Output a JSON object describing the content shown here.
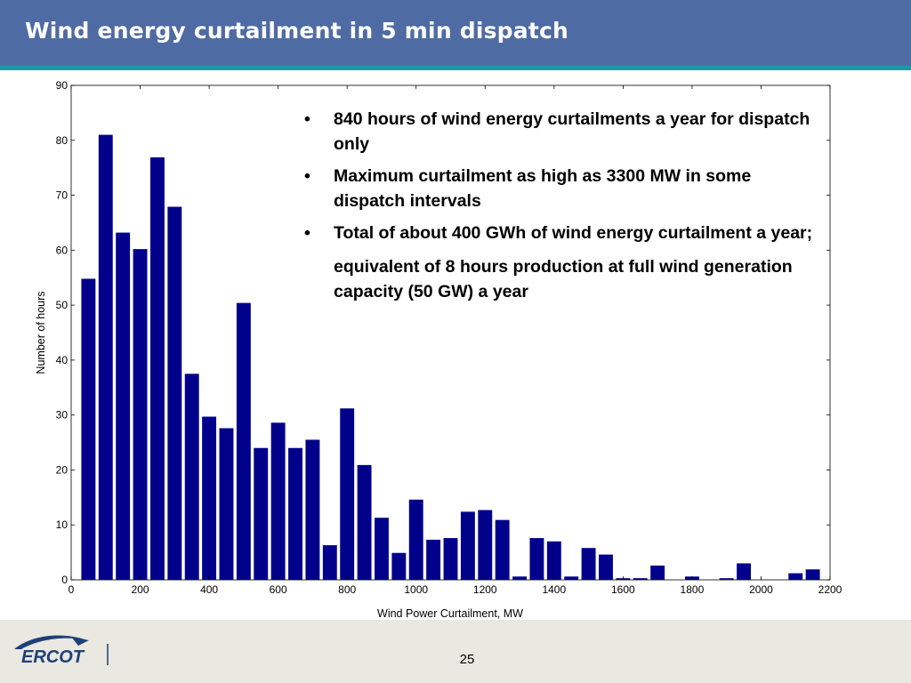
{
  "title": "Wind energy curtailment in 5 min dispatch",
  "bullets": [
    "840 hours of wind energy curtailments a year for dispatch only",
    "Maximum curtailment as high as 3300 MW in some dispatch intervals",
    "Total of about 400 GWh of wind energy curtailment a year;"
  ],
  "bullet_marker": "•",
  "bullet_continuation": "equivalent of 8 hours production at full wind generation capacity (50 GW) a year",
  "footer": {
    "logo_text": "ERCOT",
    "page_number": "25"
  },
  "colors": {
    "header": "#4f6ba3",
    "header_stripe": "#1c9aa3",
    "bar": "#00008b",
    "footer": "#e9e8e1",
    "logo": "#1f3f77"
  },
  "chart_data": {
    "type": "bar",
    "xlabel": "Wind Power Curtailment, MW",
    "ylabel": "Number of hours",
    "xlim": [
      0,
      2200
    ],
    "ylim": [
      0,
      90
    ],
    "xticks": [
      0,
      200,
      400,
      600,
      800,
      1000,
      1200,
      1400,
      1600,
      1800,
      2000,
      2200
    ],
    "yticks": [
      0,
      10,
      20,
      30,
      40,
      50,
      60,
      70,
      80,
      90
    ],
    "grid": false,
    "bin_width_mw": 50,
    "x": [
      50,
      100,
      150,
      200,
      250,
      300,
      350,
      400,
      450,
      500,
      550,
      600,
      650,
      700,
      750,
      800,
      850,
      900,
      950,
      1000,
      1050,
      1100,
      1150,
      1200,
      1250,
      1300,
      1350,
      1400,
      1450,
      1500,
      1550,
      1600,
      1650,
      1700,
      1750,
      1800,
      1850,
      1900,
      1950,
      2000,
      2050,
      2100,
      2150
    ],
    "values": [
      54.8,
      81.0,
      63.2,
      60.2,
      76.9,
      67.9,
      37.5,
      29.7,
      27.6,
      50.4,
      24.0,
      28.6,
      24.0,
      25.5,
      6.3,
      31.2,
      20.9,
      11.3,
      4.9,
      14.6,
      7.3,
      7.6,
      12.4,
      12.7,
      10.9,
      0.6,
      7.6,
      7.0,
      0.6,
      5.8,
      4.6,
      0.3,
      0.3,
      2.6,
      0,
      0.6,
      0,
      0.3,
      3.0,
      0,
      0,
      1.2,
      1.9
    ]
  }
}
